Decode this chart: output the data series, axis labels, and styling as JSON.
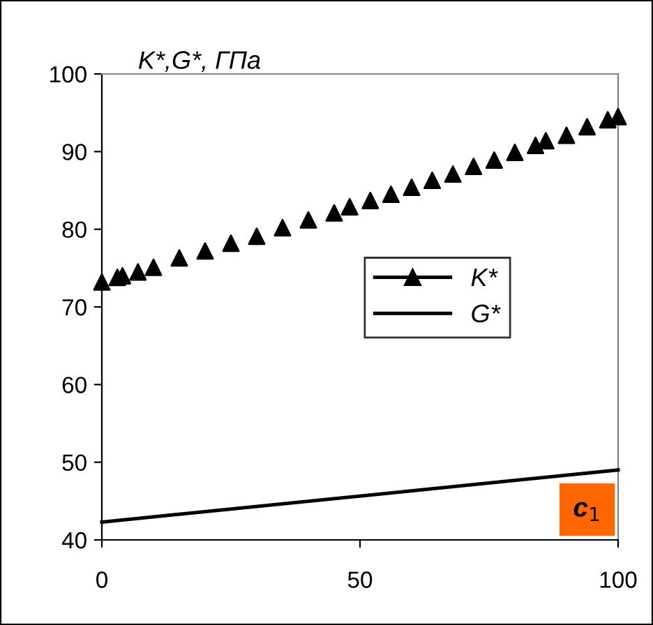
{
  "chart_data": {
    "type": "scatter",
    "ylabel": "K*,G*, ГПа",
    "series": [
      {
        "name": "K*",
        "marker": "triangle",
        "color": "#000000",
        "x": [
          0,
          3,
          4,
          7,
          10,
          15,
          20,
          25,
          30,
          35,
          40,
          45,
          48,
          52,
          56,
          60,
          64,
          68,
          72,
          76,
          80,
          84,
          86,
          90,
          94,
          98,
          100
        ],
        "values": [
          73.2,
          73.8,
          74.0,
          74.5,
          75.1,
          76.3,
          77.2,
          78.2,
          79.1,
          80.2,
          81.2,
          82.1,
          82.9,
          83.7,
          84.5,
          85.4,
          86.3,
          87.1,
          88.1,
          88.9,
          89.9,
          90.8,
          91.4,
          92.1,
          93.2,
          94.1,
          94.5
        ]
      },
      {
        "name": "G*",
        "type": "line",
        "marker": "none",
        "line_style": "solid",
        "color": "#000000",
        "x": [
          0,
          100
        ],
        "values": [
          42.3,
          49.0
        ]
      }
    ],
    "annotations": [
      "c$_{1}$"
    ],
    "xlim": [
      0,
      100
    ],
    "xticks": [
      0,
      50,
      100
    ],
    "ylim": [
      40,
      100
    ],
    "yticks": [
      40,
      50,
      60,
      70,
      80,
      90,
      100
    ],
    "grid": false,
    "legend": "center"
  }
}
